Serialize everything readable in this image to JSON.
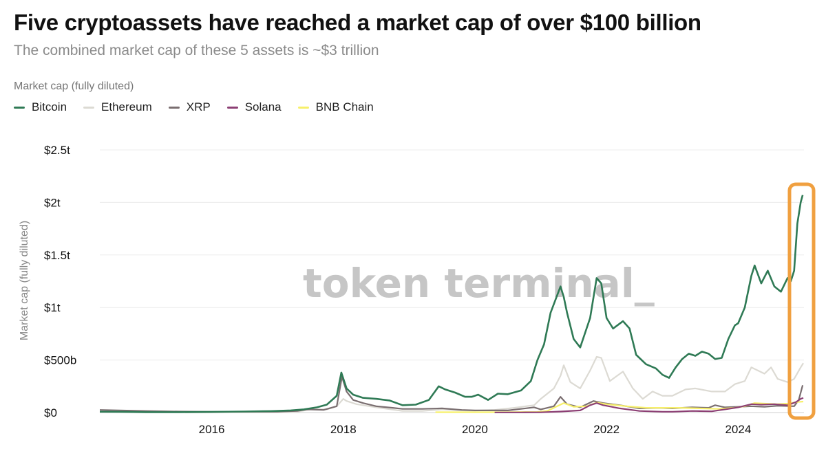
{
  "header": {
    "title": "Five cryptoassets have reached a market cap of over $100 billion",
    "subtitle": "The combined market cap of these 5 assets is ~$3 trillion",
    "metric_label": "Market cap (fully diluted)"
  },
  "watermark": "token terminal_",
  "chart_data": {
    "type": "line",
    "ylabel": "Market cap (fully diluted)",
    "ylim": [
      0,
      2500
    ],
    "xlim": [
      2014.3,
      2025.0
    ],
    "y_ticks": [
      {
        "v": 0,
        "label": "$0"
      },
      {
        "v": 500,
        "label": "$500b"
      },
      {
        "v": 1000,
        "label": "$1t"
      },
      {
        "v": 1500,
        "label": "$1.5t"
      },
      {
        "v": 2000,
        "label": "$2t"
      },
      {
        "v": 2500,
        "label": "$2.5t"
      }
    ],
    "x_ticks": [
      {
        "v": 2016,
        "label": "2016"
      },
      {
        "v": 2018,
        "label": "2018"
      },
      {
        "v": 2020,
        "label": "2020"
      },
      {
        "v": 2022,
        "label": "2022"
      },
      {
        "v": 2024,
        "label": "2024"
      }
    ],
    "grid": true,
    "legend_position": "top-left",
    "highlight_range": [
      2024.78,
      2025.0
    ],
    "highlight_color": "#f0a040",
    "series": [
      {
        "name": "Bitcoin",
        "color": "#2f7a55",
        "points": [
          [
            2014.3,
            8
          ],
          [
            2014.6,
            7
          ],
          [
            2015.0,
            4
          ],
          [
            2015.5,
            4
          ],
          [
            2016.0,
            6
          ],
          [
            2016.5,
            10
          ],
          [
            2016.9,
            14
          ],
          [
            2017.2,
            20
          ],
          [
            2017.4,
            30
          ],
          [
            2017.6,
            50
          ],
          [
            2017.75,
            75
          ],
          [
            2017.9,
            160
          ],
          [
            2017.97,
            380
          ],
          [
            2018.05,
            230
          ],
          [
            2018.15,
            170
          ],
          [
            2018.3,
            140
          ],
          [
            2018.5,
            130
          ],
          [
            2018.7,
            115
          ],
          [
            2018.9,
            70
          ],
          [
            2019.1,
            75
          ],
          [
            2019.3,
            120
          ],
          [
            2019.45,
            250
          ],
          [
            2019.55,
            220
          ],
          [
            2019.7,
            190
          ],
          [
            2019.85,
            150
          ],
          [
            2019.95,
            150
          ],
          [
            2020.05,
            170
          ],
          [
            2020.2,
            120
          ],
          [
            2020.35,
            180
          ],
          [
            2020.5,
            175
          ],
          [
            2020.7,
            210
          ],
          [
            2020.85,
            300
          ],
          [
            2020.95,
            500
          ],
          [
            2021.05,
            650
          ],
          [
            2021.15,
            950
          ],
          [
            2021.3,
            1200
          ],
          [
            2021.35,
            1100
          ],
          [
            2021.4,
            950
          ],
          [
            2021.5,
            700
          ],
          [
            2021.6,
            620
          ],
          [
            2021.75,
            900
          ],
          [
            2021.85,
            1280
          ],
          [
            2021.92,
            1230
          ],
          [
            2022.0,
            900
          ],
          [
            2022.1,
            800
          ],
          [
            2022.25,
            870
          ],
          [
            2022.35,
            800
          ],
          [
            2022.45,
            550
          ],
          [
            2022.6,
            460
          ],
          [
            2022.75,
            420
          ],
          [
            2022.85,
            360
          ],
          [
            2022.95,
            330
          ],
          [
            2023.05,
            430
          ],
          [
            2023.15,
            510
          ],
          [
            2023.25,
            560
          ],
          [
            2023.35,
            540
          ],
          [
            2023.45,
            580
          ],
          [
            2023.55,
            560
          ],
          [
            2023.65,
            510
          ],
          [
            2023.75,
            520
          ],
          [
            2023.85,
            700
          ],
          [
            2023.95,
            830
          ],
          [
            2024.0,
            850
          ],
          [
            2024.1,
            1000
          ],
          [
            2024.2,
            1300
          ],
          [
            2024.25,
            1400
          ],
          [
            2024.35,
            1230
          ],
          [
            2024.45,
            1350
          ],
          [
            2024.55,
            1200
          ],
          [
            2024.65,
            1150
          ],
          [
            2024.75,
            1280
          ],
          [
            2024.8,
            1250
          ],
          [
            2024.85,
            1350
          ],
          [
            2024.9,
            1800
          ],
          [
            2024.95,
            2000
          ],
          [
            2024.98,
            2070
          ]
        ]
      },
      {
        "name": "Ethereum",
        "color": "#dcdad3",
        "points": [
          [
            2015.6,
            1
          ],
          [
            2016.0,
            1
          ],
          [
            2016.5,
            2
          ],
          [
            2017.0,
            2
          ],
          [
            2017.3,
            8
          ],
          [
            2017.5,
            30
          ],
          [
            2017.75,
            30
          ],
          [
            2017.9,
            60
          ],
          [
            2018.0,
            130
          ],
          [
            2018.05,
            110
          ],
          [
            2018.2,
            80
          ],
          [
            2018.5,
            50
          ],
          [
            2018.9,
            15
          ],
          [
            2019.2,
            15
          ],
          [
            2019.5,
            30
          ],
          [
            2019.8,
            20
          ],
          [
            2020.0,
            18
          ],
          [
            2020.3,
            25
          ],
          [
            2020.6,
            45
          ],
          [
            2020.9,
            70
          ],
          [
            2021.0,
            130
          ],
          [
            2021.2,
            230
          ],
          [
            2021.3,
            350
          ],
          [
            2021.35,
            450
          ],
          [
            2021.45,
            290
          ],
          [
            2021.6,
            230
          ],
          [
            2021.75,
            400
          ],
          [
            2021.85,
            530
          ],
          [
            2021.92,
            520
          ],
          [
            2022.05,
            300
          ],
          [
            2022.25,
            390
          ],
          [
            2022.4,
            230
          ],
          [
            2022.55,
            130
          ],
          [
            2022.7,
            200
          ],
          [
            2022.85,
            160
          ],
          [
            2023.0,
            160
          ],
          [
            2023.2,
            220
          ],
          [
            2023.35,
            230
          ],
          [
            2023.6,
            200
          ],
          [
            2023.8,
            200
          ],
          [
            2023.95,
            270
          ],
          [
            2024.1,
            300
          ],
          [
            2024.2,
            430
          ],
          [
            2024.3,
            400
          ],
          [
            2024.4,
            370
          ],
          [
            2024.5,
            430
          ],
          [
            2024.6,
            320
          ],
          [
            2024.75,
            290
          ],
          [
            2024.85,
            320
          ],
          [
            2024.95,
            430
          ],
          [
            2024.99,
            470
          ]
        ]
      },
      {
        "name": "XRP",
        "color": "#7a6e70",
        "points": [
          [
            2014.3,
            25
          ],
          [
            2015.0,
            15
          ],
          [
            2015.5,
            10
          ],
          [
            2016.0,
            8
          ],
          [
            2016.5,
            8
          ],
          [
            2017.0,
            8
          ],
          [
            2017.3,
            15
          ],
          [
            2017.45,
            30
          ],
          [
            2017.7,
            25
          ],
          [
            2017.9,
            60
          ],
          [
            2017.98,
            340
          ],
          [
            2018.05,
            200
          ],
          [
            2018.15,
            120
          ],
          [
            2018.3,
            90
          ],
          [
            2018.5,
            60
          ],
          [
            2018.75,
            45
          ],
          [
            2018.9,
            35
          ],
          [
            2019.2,
            35
          ],
          [
            2019.5,
            40
          ],
          [
            2019.8,
            25
          ],
          [
            2020.0,
            20
          ],
          [
            2020.5,
            20
          ],
          [
            2020.9,
            50
          ],
          [
            2021.0,
            30
          ],
          [
            2021.2,
            60
          ],
          [
            2021.3,
            150
          ],
          [
            2021.4,
            80
          ],
          [
            2021.6,
            50
          ],
          [
            2021.8,
            110
          ],
          [
            2021.95,
            90
          ],
          [
            2022.2,
            70
          ],
          [
            2022.5,
            40
          ],
          [
            2022.8,
            45
          ],
          [
            2023.0,
            40
          ],
          [
            2023.3,
            50
          ],
          [
            2023.55,
            45
          ],
          [
            2023.65,
            70
          ],
          [
            2023.8,
            50
          ],
          [
            2024.0,
            55
          ],
          [
            2024.2,
            60
          ],
          [
            2024.4,
            55
          ],
          [
            2024.6,
            65
          ],
          [
            2024.85,
            60
          ],
          [
            2024.92,
            120
          ],
          [
            2024.98,
            260
          ]
        ]
      },
      {
        "name": "Solana",
        "color": "#8c3f74",
        "points": [
          [
            2020.3,
            1
          ],
          [
            2020.7,
            1
          ],
          [
            2021.0,
            2
          ],
          [
            2021.3,
            10
          ],
          [
            2021.6,
            20
          ],
          [
            2021.75,
            70
          ],
          [
            2021.85,
            90
          ],
          [
            2021.95,
            70
          ],
          [
            2022.2,
            40
          ],
          [
            2022.5,
            15
          ],
          [
            2022.85,
            8
          ],
          [
            2023.0,
            8
          ],
          [
            2023.3,
            15
          ],
          [
            2023.6,
            12
          ],
          [
            2023.85,
            35
          ],
          [
            2024.0,
            50
          ],
          [
            2024.2,
            80
          ],
          [
            2024.35,
            75
          ],
          [
            2024.55,
            80
          ],
          [
            2024.75,
            70
          ],
          [
            2024.88,
            100
          ],
          [
            2024.95,
            130
          ],
          [
            2024.99,
            140
          ]
        ]
      },
      {
        "name": "BNB Chain",
        "color": "#f7f06a",
        "points": [
          [
            2019.4,
            3
          ],
          [
            2019.8,
            3
          ],
          [
            2020.2,
            3
          ],
          [
            2020.6,
            4
          ],
          [
            2020.95,
            6
          ],
          [
            2021.1,
            15
          ],
          [
            2021.25,
            60
          ],
          [
            2021.35,
            90
          ],
          [
            2021.5,
            55
          ],
          [
            2021.7,
            60
          ],
          [
            2021.85,
            95
          ],
          [
            2022.0,
            80
          ],
          [
            2022.3,
            60
          ],
          [
            2022.6,
            45
          ],
          [
            2022.85,
            45
          ],
          [
            2023.1,
            45
          ],
          [
            2023.4,
            40
          ],
          [
            2023.7,
            35
          ],
          [
            2023.95,
            45
          ],
          [
            2024.1,
            60
          ],
          [
            2024.25,
            90
          ],
          [
            2024.4,
            85
          ],
          [
            2024.6,
            80
          ],
          [
            2024.75,
            85
          ],
          [
            2024.9,
            100
          ],
          [
            2024.99,
            105
          ]
        ]
      }
    ]
  }
}
